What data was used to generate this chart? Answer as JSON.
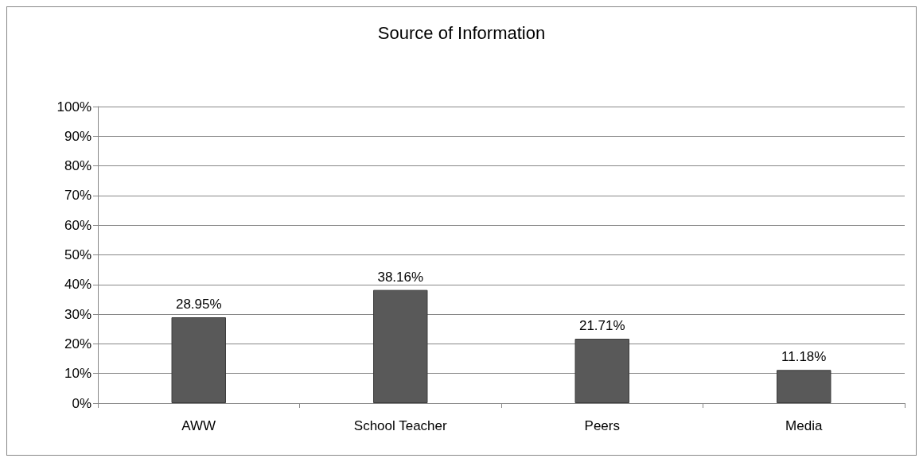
{
  "chart_data": {
    "type": "bar",
    "title": "Source of Information",
    "categories": [
      "AWW",
      "School Teacher",
      "Peers",
      "Media"
    ],
    "values": [
      28.95,
      38.16,
      21.71,
      11.18
    ],
    "value_labels": [
      "28.95%",
      "38.16%",
      "21.71%",
      "11.18%"
    ],
    "color": "#595959",
    "ylim": [
      0,
      100
    ],
    "yticks": [
      {
        "value": 0,
        "label": "0%"
      },
      {
        "value": 10,
        "label": "10%"
      },
      {
        "value": 20,
        "label": "20%"
      },
      {
        "value": 30,
        "label": "30%"
      },
      {
        "value": 40,
        "label": "40%"
      },
      {
        "value": 50,
        "label": "50%"
      },
      {
        "value": 60,
        "label": "60%"
      },
      {
        "value": 70,
        "label": "70%"
      },
      {
        "value": 80,
        "label": "80%"
      },
      {
        "value": 90,
        "label": "90%"
      },
      {
        "value": 100,
        "label": "100%"
      }
    ],
    "grid": "y"
  }
}
